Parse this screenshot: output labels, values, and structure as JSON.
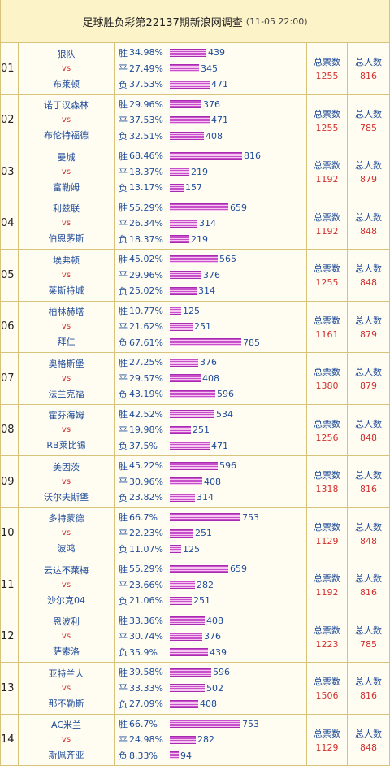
{
  "header": {
    "title": "足球胜负彩第22137期新浪网调查",
    "subtitle": "(11-05 22:00)"
  },
  "labels": {
    "win": "胜",
    "draw": "平",
    "lose": "负",
    "vs": "vs",
    "total_votes": "总票数",
    "total_people": "总人数"
  },
  "matches": [
    {
      "num": "01",
      "home": "狼队",
      "away": "布莱顿",
      "win": {
        "pct": "34.98%",
        "count": "439"
      },
      "draw": {
        "pct": "27.49%",
        "count": "345"
      },
      "lose": {
        "pct": "37.53%",
        "count": "471"
      },
      "votes": "1255",
      "people": "816"
    },
    {
      "num": "02",
      "home": "诺丁汉森林",
      "away": "布伦特福德",
      "win": {
        "pct": "29.96%",
        "count": "376"
      },
      "draw": {
        "pct": "37.53%",
        "count": "471"
      },
      "lose": {
        "pct": "32.51%",
        "count": "408"
      },
      "votes": "1255",
      "people": "785"
    },
    {
      "num": "03",
      "home": "曼城",
      "away": "富勒姆",
      "win": {
        "pct": "68.46%",
        "count": "816"
      },
      "draw": {
        "pct": "18.37%",
        "count": "219"
      },
      "lose": {
        "pct": "13.17%",
        "count": "157"
      },
      "votes": "1192",
      "people": "879"
    },
    {
      "num": "04",
      "home": "利兹联",
      "away": "伯恩茅斯",
      "win": {
        "pct": "55.29%",
        "count": "659"
      },
      "draw": {
        "pct": "26.34%",
        "count": "314"
      },
      "lose": {
        "pct": "18.37%",
        "count": "219"
      },
      "votes": "1192",
      "people": "848"
    },
    {
      "num": "05",
      "home": "埃弗顿",
      "away": "莱斯特城",
      "win": {
        "pct": "45.02%",
        "count": "565"
      },
      "draw": {
        "pct": "29.96%",
        "count": "376"
      },
      "lose": {
        "pct": "25.02%",
        "count": "314"
      },
      "votes": "1255",
      "people": "848"
    },
    {
      "num": "06",
      "home": "柏林赫塔",
      "away": "拜仁",
      "win": {
        "pct": "10.77%",
        "count": "125"
      },
      "draw": {
        "pct": "21.62%",
        "count": "251"
      },
      "lose": {
        "pct": "67.61%",
        "count": "785"
      },
      "votes": "1161",
      "people": "879"
    },
    {
      "num": "07",
      "home": "奥格斯堡",
      "away": "法兰克福",
      "win": {
        "pct": "27.25%",
        "count": "376"
      },
      "draw": {
        "pct": "29.57%",
        "count": "408"
      },
      "lose": {
        "pct": "43.19%",
        "count": "596"
      },
      "votes": "1380",
      "people": "879"
    },
    {
      "num": "08",
      "home": "霍芬海姆",
      "away": "RB莱比锡",
      "win": {
        "pct": "42.52%",
        "count": "534"
      },
      "draw": {
        "pct": "19.98%",
        "count": "251"
      },
      "lose": {
        "pct": "37.5%",
        "count": "471"
      },
      "votes": "1256",
      "people": "848"
    },
    {
      "num": "09",
      "home": "美因茨",
      "away": "沃尔夫斯堡",
      "win": {
        "pct": "45.22%",
        "count": "596"
      },
      "draw": {
        "pct": "30.96%",
        "count": "408"
      },
      "lose": {
        "pct": "23.82%",
        "count": "314"
      },
      "votes": "1318",
      "people": "816"
    },
    {
      "num": "10",
      "home": "多特蒙德",
      "away": "波鸿",
      "win": {
        "pct": "66.7%",
        "count": "753"
      },
      "draw": {
        "pct": "22.23%",
        "count": "251"
      },
      "lose": {
        "pct": "11.07%",
        "count": "125"
      },
      "votes": "1129",
      "people": "848"
    },
    {
      "num": "11",
      "home": "云达不莱梅",
      "away": "沙尔克04",
      "win": {
        "pct": "55.29%",
        "count": "659"
      },
      "draw": {
        "pct": "23.66%",
        "count": "282"
      },
      "lose": {
        "pct": "21.06%",
        "count": "251"
      },
      "votes": "1192",
      "people": "816"
    },
    {
      "num": "12",
      "home": "恩波利",
      "away": "萨索洛",
      "win": {
        "pct": "33.36%",
        "count": "408"
      },
      "draw": {
        "pct": "30.74%",
        "count": "376"
      },
      "lose": {
        "pct": "35.9%",
        "count": "439"
      },
      "votes": "1223",
      "people": "785"
    },
    {
      "num": "13",
      "home": "亚特兰大",
      "away": "那不勒斯",
      "win": {
        "pct": "39.58%",
        "count": "596"
      },
      "draw": {
        "pct": "33.33%",
        "count": "502"
      },
      "lose": {
        "pct": "27.09%",
        "count": "408"
      },
      "votes": "1506",
      "people": "816"
    },
    {
      "num": "14",
      "home": "AC米兰",
      "away": "斯佩齐亚",
      "win": {
        "pct": "66.7%",
        "count": "753"
      },
      "draw": {
        "pct": "24.98%",
        "count": "282"
      },
      "lose": {
        "pct": "8.33%",
        "count": "94"
      },
      "votes": "1129",
      "people": "848"
    }
  ],
  "colors": {
    "team": "#1f4b99",
    "vs": "#d1302f",
    "bar": "#c74fc9"
  }
}
